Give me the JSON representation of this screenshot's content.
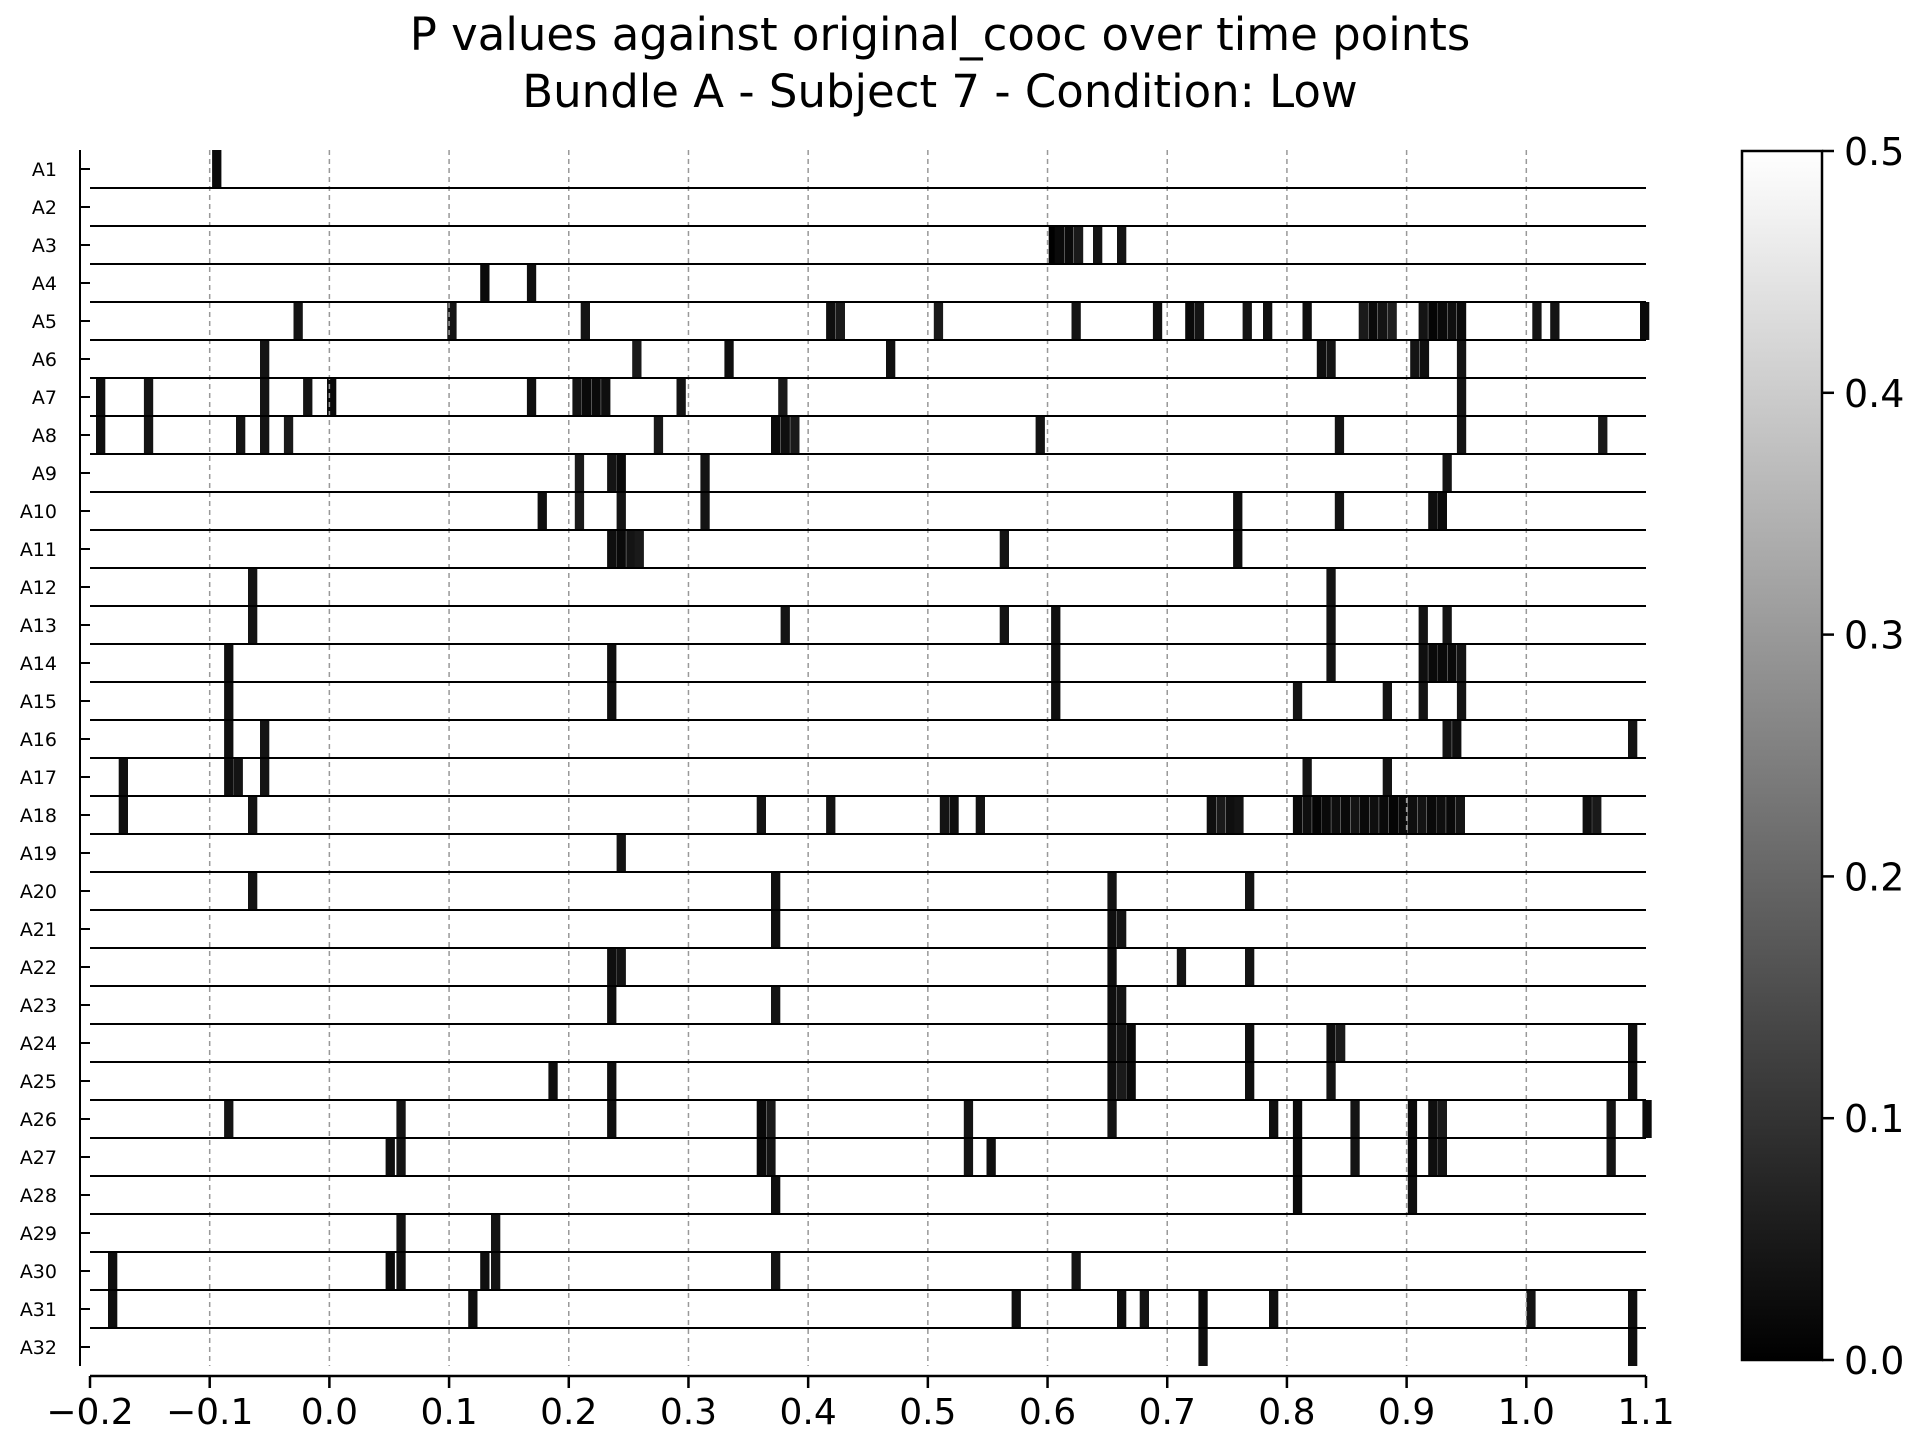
{
  "chart_data": {
    "type": "heatmap",
    "title": "P values against original_cooc over time points",
    "subtitle": "Bundle A - Subject 7 - Condition: Low",
    "xlabel": "",
    "ylabel": "",
    "xlim": [
      -0.2,
      1.1
    ],
    "xticks": [
      "−0.2",
      "−0.1",
      "0.0",
      "0.1",
      "0.2",
      "0.3",
      "0.4",
      "0.5",
      "0.6",
      "0.7",
      "0.8",
      "0.9",
      "1.0",
      "1.1"
    ],
    "xtick_values": [
      -0.2,
      -0.1,
      0.0,
      0.1,
      0.2,
      0.3,
      0.4,
      0.5,
      0.6,
      0.7,
      0.8,
      0.9,
      1.0,
      1.1
    ],
    "grid": "vertical-dashed",
    "colormap": "gray",
    "colorbar": {
      "range": [
        0.0,
        0.5
      ],
      "ticks": [
        "0.0",
        "0.1",
        "0.2",
        "0.3",
        "0.4",
        "0.5"
      ],
      "tick_values": [
        0.0,
        0.1,
        0.2,
        0.3,
        0.4,
        0.5
      ]
    },
    "default_value": 0.5,
    "bin_width": 0.0078,
    "rows": [
      {
        "label": "A1",
        "sig": [
          [
            -0.098,
            0.02
          ]
        ]
      },
      {
        "label": "A2",
        "sig": []
      },
      {
        "label": "A3",
        "sig": [
          [
            0.601,
            0.0
          ],
          [
            0.606,
            0.02
          ],
          [
            0.614,
            0.02
          ],
          [
            0.622,
            0.05
          ],
          [
            0.638,
            0.04
          ],
          [
            0.658,
            0.04
          ]
        ]
      },
      {
        "label": "A4",
        "sig": [
          [
            0.126,
            0.02
          ],
          [
            0.165,
            0.03
          ]
        ]
      },
      {
        "label": "A5",
        "sig": [
          [
            -0.03,
            0.04
          ],
          [
            0.0985,
            0.04
          ],
          [
            0.21,
            0.04
          ],
          [
            0.415,
            0.03
          ],
          [
            0.423,
            0.05
          ],
          [
            0.505,
            0.05
          ],
          [
            0.62,
            0.04
          ],
          [
            0.688,
            0.03
          ],
          [
            0.715,
            0.02
          ],
          [
            0.723,
            0.04
          ],
          [
            0.763,
            0.04
          ],
          [
            0.78,
            0.03
          ],
          [
            0.813,
            0.03
          ],
          [
            0.86,
            0.05
          ],
          [
            0.868,
            0.02
          ],
          [
            0.876,
            0.04
          ],
          [
            0.884,
            0.06
          ],
          [
            0.91,
            0.04
          ],
          [
            0.918,
            0.01
          ],
          [
            0.926,
            0.02
          ],
          [
            0.934,
            0.03
          ],
          [
            0.942,
            0.02
          ],
          [
            1.005,
            0.04
          ],
          [
            1.02,
            0.04
          ],
          [
            1.095,
            0.02
          ]
        ]
      },
      {
        "label": "A6",
        "sig": [
          [
            -0.058,
            0.04
          ],
          [
            0.253,
            0.05
          ],
          [
            0.33,
            0.03
          ],
          [
            0.465,
            0.03
          ],
          [
            0.825,
            0.03
          ],
          [
            0.833,
            0.04
          ],
          [
            0.903,
            0.04
          ],
          [
            0.911,
            0.03
          ],
          [
            0.942,
            0.04
          ]
        ]
      },
      {
        "label": "A7",
        "sig": [
          [
            -0.195,
            0.03
          ],
          [
            -0.155,
            0.04
          ],
          [
            -0.058,
            0.04
          ],
          [
            -0.022,
            0.04
          ],
          [
            -0.002,
            0.02
          ],
          [
            0.165,
            0.03
          ],
          [
            0.203,
            0.04
          ],
          [
            0.211,
            0.02
          ],
          [
            0.219,
            0.02
          ],
          [
            0.227,
            0.03
          ],
          [
            0.29,
            0.04
          ],
          [
            0.375,
            0.05
          ],
          [
            0.942,
            0.04
          ]
        ]
      },
      {
        "label": "A8",
        "sig": [
          [
            -0.195,
            0.03
          ],
          [
            -0.155,
            0.04
          ],
          [
            -0.078,
            0.04
          ],
          [
            -0.058,
            0.04
          ],
          [
            -0.038,
            0.05
          ],
          [
            0.271,
            0.05
          ],
          [
            0.369,
            0.02
          ],
          [
            0.377,
            0.03
          ],
          [
            0.385,
            0.05
          ],
          [
            0.59,
            0.04
          ],
          [
            0.84,
            0.04
          ],
          [
            0.942,
            0.04
          ],
          [
            1.06,
            0.05
          ]
        ]
      },
      {
        "label": "A9",
        "sig": [
          [
            0.205,
            0.05
          ],
          [
            0.232,
            0.04
          ],
          [
            0.24,
            0.02
          ],
          [
            0.31,
            0.04
          ],
          [
            0.93,
            0.04
          ]
        ]
      },
      {
        "label": "A10",
        "sig": [
          [
            0.174,
            0.03
          ],
          [
            0.205,
            0.05
          ],
          [
            0.24,
            0.04
          ],
          [
            0.31,
            0.04
          ],
          [
            0.755,
            0.03
          ],
          [
            0.84,
            0.04
          ],
          [
            0.918,
            0.03
          ],
          [
            0.926,
            0.02
          ]
        ]
      },
      {
        "label": "A11",
        "sig": [
          [
            0.232,
            0.03
          ],
          [
            0.24,
            0.02
          ],
          [
            0.248,
            0.04
          ],
          [
            0.255,
            0.05
          ],
          [
            0.56,
            0.04
          ],
          [
            0.755,
            0.03
          ]
        ]
      },
      {
        "label": "A12",
        "sig": [
          [
            -0.068,
            0.04
          ],
          [
            0.833,
            0.04
          ]
        ]
      },
      {
        "label": "A13",
        "sig": [
          [
            -0.068,
            0.04
          ],
          [
            0.377,
            0.04
          ],
          [
            0.56,
            0.04
          ],
          [
            0.603,
            0.03
          ],
          [
            0.833,
            0.04
          ],
          [
            0.91,
            0.04
          ],
          [
            0.93,
            0.04
          ]
        ]
      },
      {
        "label": "A14",
        "sig": [
          [
            -0.088,
            0.03
          ],
          [
            0.232,
            0.03
          ],
          [
            0.603,
            0.03
          ],
          [
            0.833,
            0.04
          ],
          [
            0.91,
            0.03
          ],
          [
            0.918,
            0.02
          ],
          [
            0.926,
            0.02
          ],
          [
            0.934,
            0.02
          ],
          [
            0.942,
            0.04
          ]
        ]
      },
      {
        "label": "A15",
        "sig": [
          [
            -0.088,
            0.03
          ],
          [
            0.232,
            0.03
          ],
          [
            0.603,
            0.03
          ],
          [
            0.805,
            0.04
          ],
          [
            0.88,
            0.04
          ],
          [
            0.91,
            0.04
          ],
          [
            0.942,
            0.04
          ]
        ]
      },
      {
        "label": "A16",
        "sig": [
          [
            -0.088,
            0.03
          ],
          [
            -0.058,
            0.04
          ],
          [
            0.93,
            0.04
          ],
          [
            0.938,
            0.03
          ],
          [
            1.085,
            0.04
          ]
        ]
      },
      {
        "label": "A17",
        "sig": [
          [
            -0.176,
            0.03
          ],
          [
            -0.088,
            0.03
          ],
          [
            -0.08,
            0.04
          ],
          [
            -0.058,
            0.04
          ],
          [
            0.813,
            0.04
          ],
          [
            0.88,
            0.04
          ]
        ]
      },
      {
        "label": "A18",
        "sig": [
          [
            -0.176,
            0.03
          ],
          [
            -0.068,
            0.04
          ],
          [
            0.357,
            0.04
          ],
          [
            0.415,
            0.04
          ],
          [
            0.51,
            0.04
          ],
          [
            0.518,
            0.03
          ],
          [
            0.54,
            0.04
          ],
          [
            0.733,
            0.03
          ],
          [
            0.741,
            0.05
          ],
          [
            0.749,
            0.03
          ],
          [
            0.756,
            0.04
          ],
          [
            0.805,
            0.02
          ],
          [
            0.813,
            0.03
          ],
          [
            0.821,
            0.01
          ],
          [
            0.829,
            0.02
          ],
          [
            0.837,
            0.03
          ],
          [
            0.845,
            0.02
          ],
          [
            0.853,
            0.04
          ],
          [
            0.861,
            0.02
          ],
          [
            0.869,
            0.03
          ],
          [
            0.877,
            0.02
          ],
          [
            0.885,
            0.01
          ],
          [
            0.893,
            0.02
          ],
          [
            0.901,
            0.03
          ],
          [
            0.909,
            0.04
          ],
          [
            0.917,
            0.02
          ],
          [
            0.925,
            0.03
          ],
          [
            0.933,
            0.02
          ],
          [
            0.941,
            0.04
          ],
          [
            1.047,
            0.03
          ],
          [
            1.055,
            0.05
          ]
        ]
      },
      {
        "label": "A19",
        "sig": [
          [
            0.24,
            0.04
          ]
        ]
      },
      {
        "label": "A20",
        "sig": [
          [
            -0.068,
            0.04
          ],
          [
            0.369,
            0.03
          ],
          [
            0.65,
            0.04
          ],
          [
            0.765,
            0.04
          ]
        ]
      },
      {
        "label": "A21",
        "sig": [
          [
            0.369,
            0.03
          ],
          [
            0.65,
            0.03
          ],
          [
            0.658,
            0.04
          ]
        ]
      },
      {
        "label": "A22",
        "sig": [
          [
            0.232,
            0.03
          ],
          [
            0.24,
            0.04
          ],
          [
            0.65,
            0.03
          ],
          [
            0.708,
            0.04
          ],
          [
            0.765,
            0.04
          ]
        ]
      },
      {
        "label": "A23",
        "sig": [
          [
            0.232,
            0.03
          ],
          [
            0.369,
            0.04
          ],
          [
            0.65,
            0.03
          ],
          [
            0.658,
            0.04
          ]
        ]
      },
      {
        "label": "A24",
        "sig": [
          [
            0.65,
            0.03
          ],
          [
            0.658,
            0.04
          ],
          [
            0.666,
            0.02
          ],
          [
            0.765,
            0.03
          ],
          [
            0.833,
            0.03
          ],
          [
            0.841,
            0.05
          ],
          [
            1.085,
            0.03
          ]
        ]
      },
      {
        "label": "A25",
        "sig": [
          [
            0.183,
            0.03
          ],
          [
            0.232,
            0.03
          ],
          [
            0.65,
            0.03
          ],
          [
            0.658,
            0.05
          ],
          [
            0.666,
            0.02
          ],
          [
            0.765,
            0.03
          ],
          [
            0.833,
            0.04
          ],
          [
            1.085,
            0.03
          ]
        ]
      },
      {
        "label": "A26",
        "sig": [
          [
            -0.088,
            0.04
          ],
          [
            0.056,
            0.04
          ],
          [
            0.232,
            0.03
          ],
          [
            0.357,
            0.02
          ],
          [
            0.365,
            0.05
          ],
          [
            0.53,
            0.04
          ],
          [
            0.65,
            0.04
          ],
          [
            0.785,
            0.03
          ],
          [
            0.805,
            0.02
          ],
          [
            0.853,
            0.04
          ],
          [
            0.901,
            0.02
          ],
          [
            0.918,
            0.03
          ],
          [
            0.926,
            0.05
          ],
          [
            1.067,
            0.04
          ],
          [
            1.097,
            0.02
          ]
        ]
      },
      {
        "label": "A27",
        "sig": [
          [
            0.047,
            0.03
          ],
          [
            0.056,
            0.04
          ],
          [
            0.357,
            0.02
          ],
          [
            0.365,
            0.04
          ],
          [
            0.53,
            0.04
          ],
          [
            0.549,
            0.03
          ],
          [
            0.805,
            0.02
          ],
          [
            0.853,
            0.04
          ],
          [
            0.901,
            0.02
          ],
          [
            0.918,
            0.03
          ],
          [
            0.926,
            0.04
          ],
          [
            1.067,
            0.04
          ]
        ]
      },
      {
        "label": "A28",
        "sig": [
          [
            0.369,
            0.03
          ],
          [
            0.805,
            0.02
          ],
          [
            0.901,
            0.03
          ]
        ]
      },
      {
        "label": "A29",
        "sig": [
          [
            0.056,
            0.04
          ],
          [
            0.135,
            0.04
          ]
        ]
      },
      {
        "label": "A30",
        "sig": [
          [
            -0.185,
            0.03
          ],
          [
            0.047,
            0.02
          ],
          [
            0.056,
            0.03
          ],
          [
            0.126,
            0.03
          ],
          [
            0.135,
            0.04
          ],
          [
            0.369,
            0.04
          ],
          [
            0.62,
            0.04
          ]
        ]
      },
      {
        "label": "A31",
        "sig": [
          [
            -0.185,
            0.03
          ],
          [
            0.116,
            0.03
          ],
          [
            0.57,
            0.03
          ],
          [
            0.658,
            0.03
          ],
          [
            0.677,
            0.04
          ],
          [
            0.726,
            0.02
          ],
          [
            0.785,
            0.03
          ],
          [
            1.0,
            0.04
          ],
          [
            1.085,
            0.03
          ]
        ]
      },
      {
        "label": "A32",
        "sig": [
          [
            0.726,
            0.03
          ],
          [
            1.085,
            0.03
          ]
        ]
      }
    ]
  }
}
